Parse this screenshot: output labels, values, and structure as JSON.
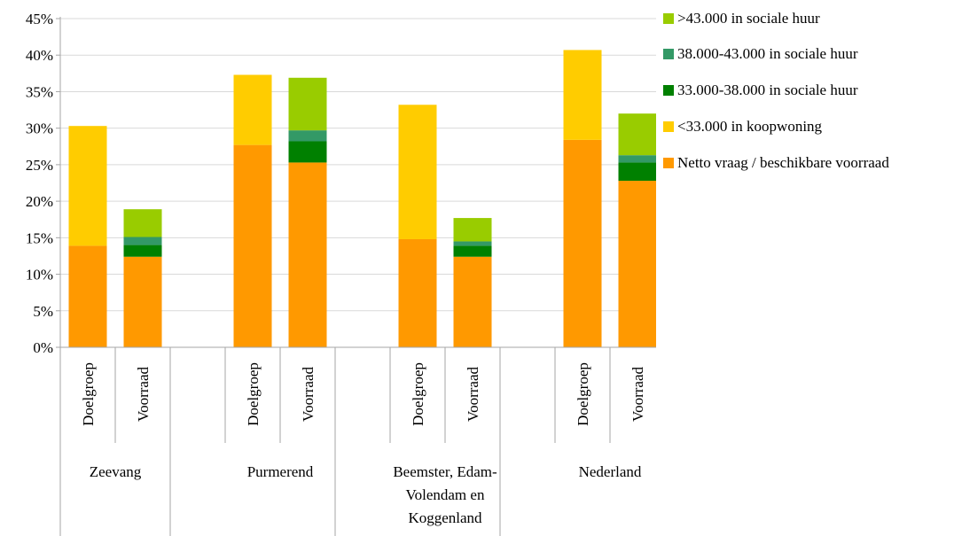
{
  "chart_data": {
    "type": "bar",
    "stacked": true,
    "y_axis": {
      "ylim": [
        0,
        45
      ],
      "ticks": [
        "0%",
        "5%",
        "10%",
        "15%",
        "20%",
        "25%",
        "30%",
        "35%",
        "40%",
        "45%"
      ],
      "grid": true
    },
    "groups": [
      {
        "name": "Zeevang",
        "lines": [
          "Zeevang"
        ],
        "categories": [
          "Doelgroep",
          "Voorraad"
        ]
      },
      {
        "name": "Purmerend",
        "lines": [
          "Purmerend"
        ],
        "categories": [
          "Doelgroep",
          "Voorraad"
        ]
      },
      {
        "name": "Beemster, Edam-Volendam en Koggenland",
        "lines": [
          "Beemster, Edam-",
          "Volendam en",
          "Koggenland"
        ],
        "categories": [
          "Doelgroep",
          "Voorraad"
        ]
      },
      {
        "name": "Nederland",
        "lines": [
          "Nederland"
        ],
        "categories": [
          "Doelgroep",
          "Voorraad"
        ]
      }
    ],
    "categories": [
      "Zeevang | Doelgroep",
      "Zeevang | Voorraad",
      "Purmerend | Doelgroep",
      "Purmerend | Voorraad",
      "Beemster, Edam-Volendam en Koggenland | Doelgroep",
      "Beemster, Edam-Volendam en Koggenland | Voorraad",
      "Nederland | Doelgroep",
      "Nederland | Voorraad"
    ],
    "series": [
      {
        "name": "Netto vraag / beschikbare voorraad",
        "color": "#ff9900",
        "values": [
          13.9,
          12.4,
          27.7,
          25.3,
          14.8,
          12.4,
          28.4,
          22.8
        ]
      },
      {
        "name": "<33.000 in koopwoning",
        "color": "#ffcc00",
        "values": [
          16.4,
          0,
          9.6,
          0,
          18.4,
          0,
          12.3,
          0
        ]
      },
      {
        "name": "33.000-38.000  in sociale huur",
        "color": "#008000",
        "values": [
          0,
          1.6,
          0,
          2.9,
          0,
          1.5,
          0,
          2.5
        ]
      },
      {
        "name": "38.000-43.000  in sociale huur",
        "color": "#339966",
        "values": [
          0,
          1.1,
          0,
          1.5,
          0,
          0.6,
          0,
          1.0
        ]
      },
      {
        "name": ">43.000 in sociale huur",
        "color": "#99cc00",
        "values": [
          0,
          3.8,
          0,
          7.2,
          0,
          3.2,
          0,
          5.7
        ]
      }
    ],
    "legend_order": [
      4,
      3,
      2,
      1,
      0
    ],
    "legend_position": "right"
  }
}
